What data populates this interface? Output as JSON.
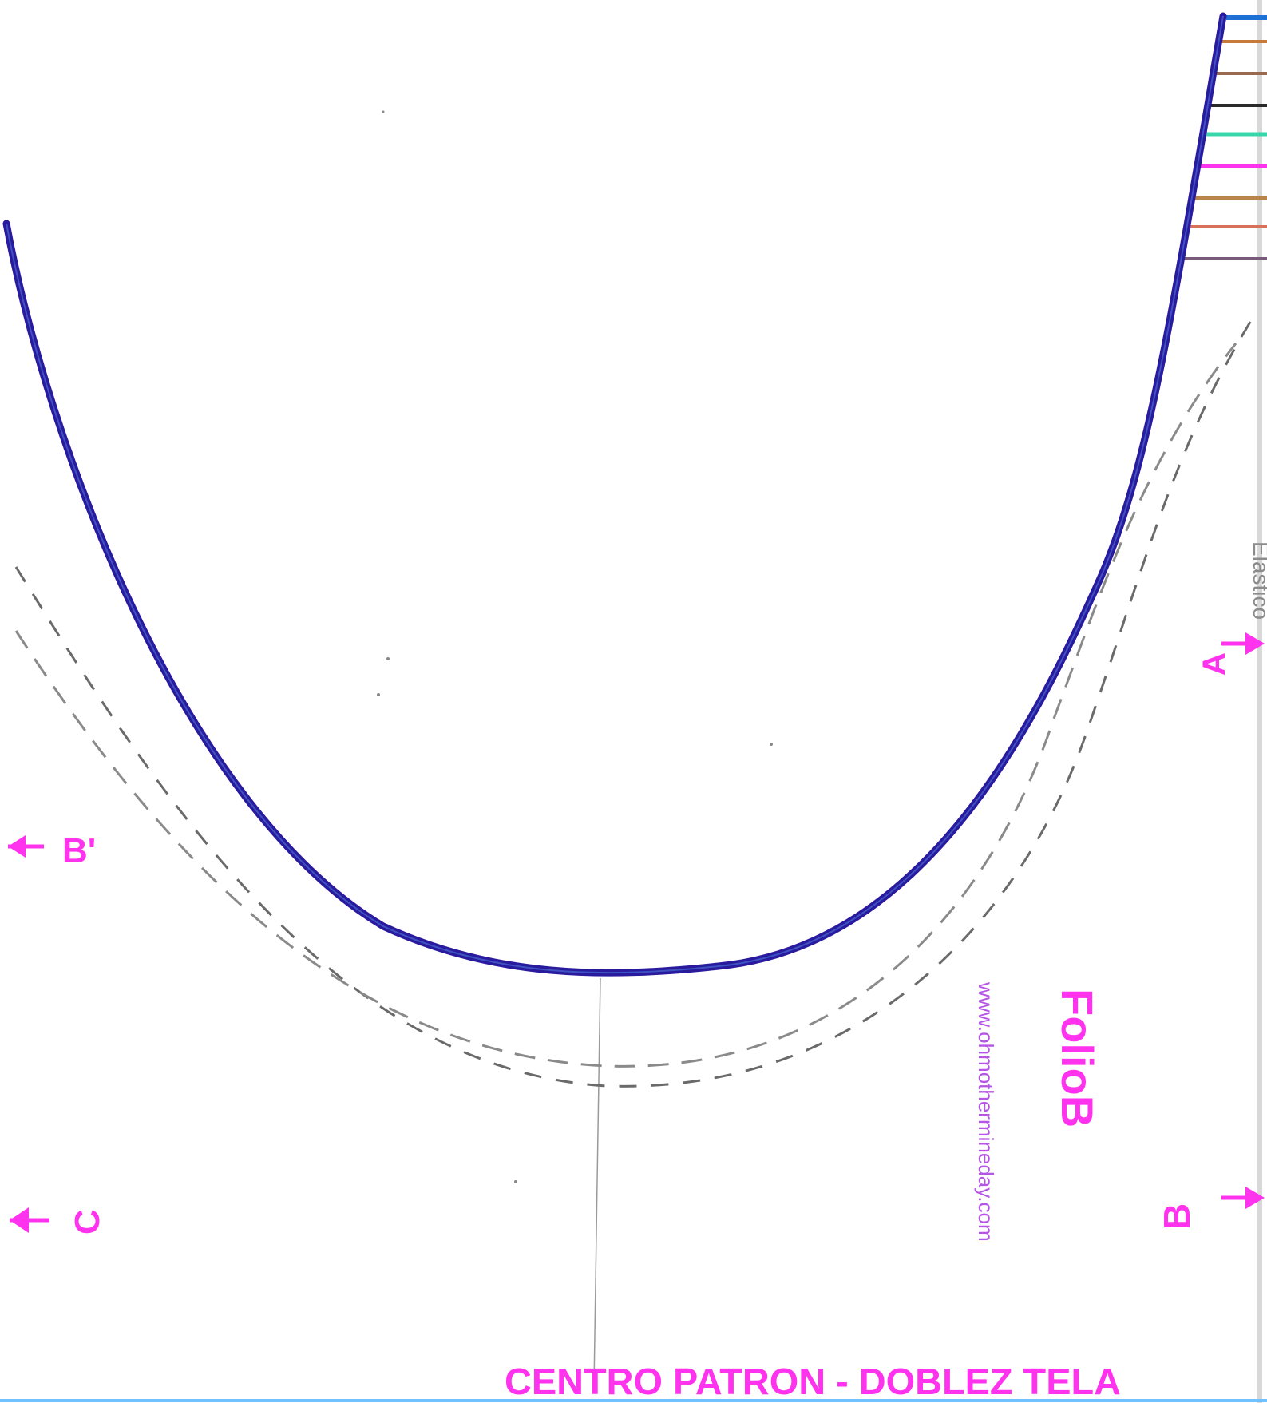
{
  "pattern": {
    "sheet_label": "FolioB",
    "center_fold_text": "CENTRO PATRON - DOBLEZ TELA",
    "elastic_text": "Elastico",
    "website": "www.ohmothermineday.com",
    "markers": {
      "a": "A",
      "b": "B",
      "b_prime": "B'",
      "c": "C"
    },
    "colors": {
      "cut_line": "#2a1a9e",
      "marker_ink": "#ff33ee",
      "pencil": "#8c8c8c",
      "url_ink": "#b455e6"
    }
  }
}
